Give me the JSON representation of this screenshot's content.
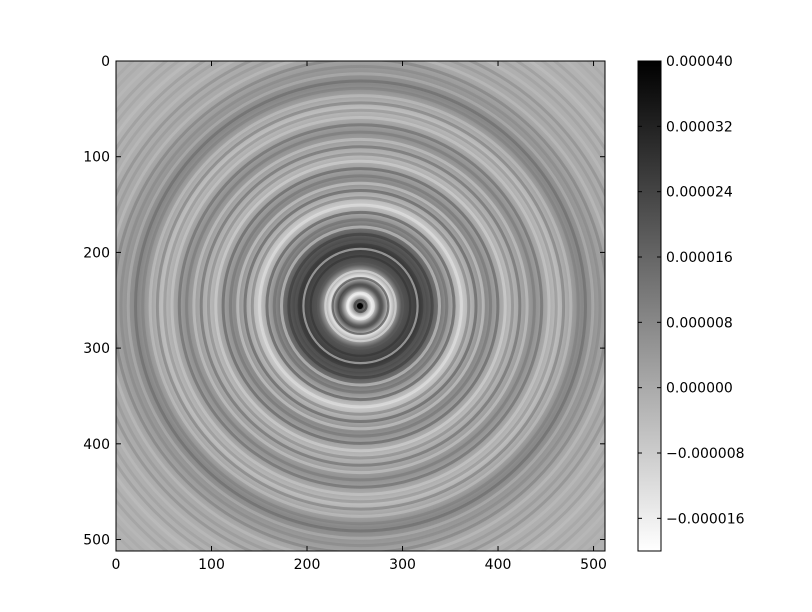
{
  "chart_data": {
    "type": "heatmap",
    "title": "",
    "xlabel": "",
    "ylabel": "",
    "colormap": "gray_r",
    "xlim": [
      0,
      512
    ],
    "ylim": [
      512,
      0
    ],
    "x_ticks": [
      0,
      100,
      200,
      300,
      400,
      500
    ],
    "y_ticks": [
      0,
      100,
      200,
      300,
      400,
      500
    ],
    "x_tick_labels": [
      "0",
      "100",
      "200",
      "300",
      "400",
      "500"
    ],
    "y_tick_labels": [
      "0",
      "100",
      "200",
      "300",
      "400",
      "500"
    ],
    "center": [
      256,
      256
    ],
    "colorbar": {
      "vmin": -2e-05,
      "vmax": 4e-05,
      "ticks": [
        4e-05,
        3.2e-05,
        2.4e-05,
        1.6e-05,
        8e-06,
        0.0,
        -8e-06,
        -1.6e-05
      ],
      "tick_labels": [
        "0.000040",
        "0.000032",
        "0.000024",
        "0.000016",
        "0.000008",
        "0.000000",
        "−0.000008",
        "−0.000016"
      ]
    },
    "colors": {
      "frame": "#000000",
      "background": "#ffffff"
    }
  }
}
